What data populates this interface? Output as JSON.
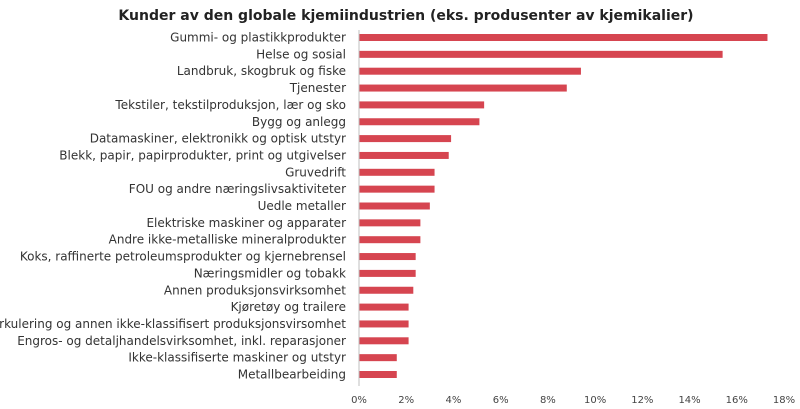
{
  "chart_data": {
    "type": "bar",
    "orientation": "horizontal",
    "title": "Kunder av den globale kjemiindustrien (eks. produsenter av kjemikalier)",
    "xlabel": "",
    "ylabel": "",
    "categories": [
      "Gummi- og plastikkprodukter",
      "Helse og sosial",
      "Landbruk, skogbruk og fiske",
      "Tjenester",
      "Tekstiler, tekstilproduksjon, lær og sko",
      "Bygg og anlegg",
      "Datamaskiner, elektronikk og optisk utstyr",
      "Blekk, papir, papirprodukter, print og utgivelser",
      "Gruvedrift",
      "FOU og andre næringslivsaktiviteter",
      "Uedle metaller",
      "Elektriske maskiner og apparater",
      "Andre ikke-metalliske mineralprodukter",
      "Koks, raffinerte petroleumsprodukter og kjernebrensel",
      "Næringsmidler og tobakk",
      "Annen produksjonsvirksomhet",
      "Kjøretøy og trailere",
      "Resirkulering og annen ikke-klassifisert produksjonsvirsomhet",
      "Engros- og detaljhandelsvirksomhet, inkl. reparasjoner",
      "Ikke-klassifiserte maskiner og utstyr",
      "Metallbearbeiding"
    ],
    "values": [
      17.3,
      15.4,
      9.4,
      8.8,
      5.3,
      5.1,
      3.9,
      3.8,
      3.2,
      3.2,
      3.0,
      2.6,
      2.6,
      2.4,
      2.4,
      2.3,
      2.1,
      2.1,
      2.1,
      1.6,
      1.6
    ],
    "xlim": [
      0,
      18
    ],
    "ticks": [
      0,
      2,
      4,
      6,
      8,
      10,
      12,
      14,
      16,
      18
    ],
    "tick_labels": [
      "0%",
      "2%",
      "4%",
      "6%",
      "8%",
      "10%",
      "12%",
      "14%",
      "16%",
      "18%"
    ],
    "grid": false,
    "legend": "none",
    "bar_color": "#d64550"
  }
}
